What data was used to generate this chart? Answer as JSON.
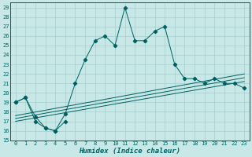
{
  "xlabel": "Humidex (Indice chaleur)",
  "bg_color": "#c8e8e8",
  "grid_color": "#a8cece",
  "line_color": "#006060",
  "ylim": [
    15,
    29.5
  ],
  "xlim": [
    -0.5,
    23.5
  ],
  "yticks": [
    15,
    16,
    17,
    18,
    19,
    20,
    21,
    22,
    23,
    24,
    25,
    26,
    27,
    28,
    29
  ],
  "xticks": [
    0,
    1,
    2,
    3,
    4,
    5,
    6,
    7,
    8,
    9,
    10,
    11,
    12,
    13,
    14,
    15,
    16,
    17,
    18,
    19,
    20,
    21,
    22,
    23
  ],
  "main_x": [
    0,
    1,
    2,
    3,
    4,
    5,
    6,
    7,
    8,
    9,
    10,
    11,
    12,
    13,
    14,
    15,
    16,
    17,
    18,
    19,
    20,
    21,
    22,
    23
  ],
  "main_y": [
    19.0,
    19.5,
    17.0,
    16.3,
    16.0,
    17.8,
    21.0,
    23.5,
    25.5,
    26.0,
    25.0,
    29.0,
    25.5,
    25.5,
    26.5,
    27.0,
    23.0,
    21.5,
    21.5,
    21.0,
    21.5,
    21.0,
    21.0,
    20.5
  ],
  "side_x": [
    0,
    1,
    2,
    3,
    4,
    5
  ],
  "side_y": [
    19.0,
    19.5,
    17.5,
    16.3,
    16.0,
    17.0
  ],
  "trend_lines": [
    {
      "x0": 0,
      "x1": 23,
      "y0": 17.0,
      "y1": 21.2
    },
    {
      "x0": 0,
      "x1": 23,
      "y0": 17.3,
      "y1": 21.6
    },
    {
      "x0": 0,
      "x1": 23,
      "y0": 17.6,
      "y1": 22.0
    }
  ]
}
